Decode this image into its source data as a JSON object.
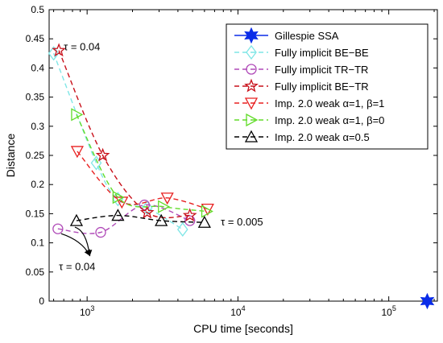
{
  "chart_data": {
    "type": "line",
    "xlabel": "CPU time [seconds]",
    "ylabel": "Distance",
    "xscale": "log",
    "xlim": [
      560,
      210000
    ],
    "ylim": [
      0,
      0.5
    ],
    "grid": false,
    "legend_position": "top-right",
    "x_ticks": [
      {
        "value": 1000,
        "base": "10",
        "exp": "3"
      },
      {
        "value": 10000,
        "base": "10",
        "exp": "4"
      },
      {
        "value": 100000,
        "base": "10",
        "exp": "5"
      }
    ],
    "y_ticks": [
      "0",
      "0.05",
      "0.1",
      "0.15",
      "0.2",
      "0.25",
      "0.3",
      "0.35",
      "0.4",
      "0.45",
      "0.5"
    ],
    "annotations": [
      {
        "text": "τ = 0.04",
        "x": 700,
        "y": 0.4375
      },
      {
        "text": "τ = 0.005",
        "x": 7700,
        "y": 0.137
      },
      {
        "text": "τ = 0.04",
        "x": 700,
        "y": 0.06
      }
    ],
    "series": [
      {
        "name": "Gillespie SSA",
        "color": "#0a2ce8",
        "marker": "hexagram",
        "dash": "solid",
        "x": [
          180000
        ],
        "y": [
          0.0
        ]
      },
      {
        "name": "Fully implicit BE−BE",
        "color": "#7fe6e6",
        "marker": "diamond",
        "dash": "dashed",
        "x": [
          600,
          1150,
          1600,
          2500,
          4300
        ],
        "y": [
          0.425,
          0.237,
          0.175,
          0.16,
          0.123
        ]
      },
      {
        "name": "Fully implicit TR−TR",
        "color": "#b04ab8",
        "marker": "circle",
        "dash": "dashed",
        "x": [
          640,
          1230,
          2400,
          4800
        ],
        "y": [
          0.124,
          0.118,
          0.165,
          0.138
        ]
      },
      {
        "name": "Fully implicit BE−TR",
        "color": "#c8101a",
        "marker": "pentagram",
        "dash": "dashed",
        "x": [
          650,
          1270,
          2500,
          4800
        ],
        "y": [
          0.43,
          0.25,
          0.152,
          0.147
        ]
      },
      {
        "name": "Imp. 2.0 weak α=1, β=1",
        "color": "#e82020",
        "marker": "triangle-down",
        "dash": "dashed",
        "x": [
          860,
          1700,
          3400,
          6300
        ],
        "y": [
          0.257,
          0.17,
          0.177,
          0.158
        ]
      },
      {
        "name": "Imp. 2.0 weak α=1, β=0",
        "color": "#62dc2a",
        "marker": "triangle-right",
        "dash": "dashed",
        "x": [
          850,
          1600,
          3200,
          6200
        ],
        "y": [
          0.32,
          0.178,
          0.162,
          0.154
        ]
      },
      {
        "name": "Imp. 2.0 weak α=0.5",
        "color": "#000000",
        "marker": "triangle-up",
        "dash": "dashed",
        "x": [
          850,
          1600,
          3100,
          6000
        ],
        "y": [
          0.138,
          0.147,
          0.138,
          0.135
        ]
      }
    ]
  }
}
